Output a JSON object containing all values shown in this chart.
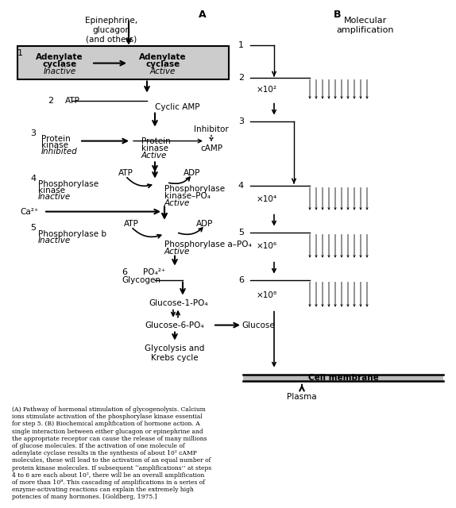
{
  "bg_color": "#ffffff",
  "fig_width": 5.55,
  "fig_height": 5.97,
  "epinephrine_text": "Epinephrine,\nglucagon\n(and others)",
  "label_A": "A",
  "label_B": "B",
  "mol_amp": "Molecular\namplification",
  "step1_left": "Adenylate\ncyclase",
  "step1_left_italic": "Inactive",
  "step1_right": "Adenylate\ncyclase",
  "step1_right_italic": "Active",
  "step2_label": "ATP",
  "cyclic_amp": "Cyclic AMP",
  "inhibitor": "Inhibitor",
  "camp": "cAMP",
  "step3_left1": "Protein",
  "step3_left2": "kinase",
  "step3_left_italic": "Inhibited",
  "step3_right1": "Protein",
  "step3_right2": "kinase",
  "step3_right_italic": "Active",
  "atp": "ATP",
  "adp": "ADP",
  "step4_left1": "Phosphorylase",
  "step4_left2": "kinase",
  "step4_left_italic": "Inactive",
  "step4_right1": "Phosphorylase",
  "step4_right2": "kinase–PO₄",
  "step4_right_italic": "Active",
  "ca2": "Ca²⁺",
  "step5_left1": "Phosphorylase b",
  "step5_left_italic": "Inactive",
  "step5_right1": "Phosphorylase a–PO₄",
  "step5_right_italic": "Active",
  "po4": "PO₄²⁺",
  "step6": "6",
  "glycogen": "Glycogen",
  "glucose1": "Glucose-1-PO₄",
  "glucose6": "Glucose-6-PO₄",
  "glucose": "Glucose",
  "glycolysis": "Glycolysis and\nKrebs cycle",
  "cell_membrane": "Cell membrane",
  "plasma": "Plasma",
  "amp2": "×10²",
  "amp4": "×10⁴",
  "amp6": "×10⁶",
  "amp8": "×10⁸",
  "footnote": "(A) Pathway of hormonal stimulation of glycogenolysis. Calcium\nions stimulate activation of the phosphorylase kinase essential\nfor step 5. (B) Biochemical amplification of hormone action. A\nsingle interaction between either glucagon or epinephrine and\nthe appropriate receptor can cause the release of many millions\nof glucose molecules. If the activation of one molecule of\nadenylate cyclase results in the synthesis of about 10² cAMP\nmolecules, these will lead to the activation of an equal number of\nprotein kinase molecules. If subsequent ‘‘amplifications’’ at steps\n4 to 6 are each about 10², there will be an overall amplification\nof more than 10⁸. This cascading of amplifications in a series of\nenzyme-activating reactions can explain the extremely high\npotencies of many hormones. [Goldberg, 1975.]"
}
